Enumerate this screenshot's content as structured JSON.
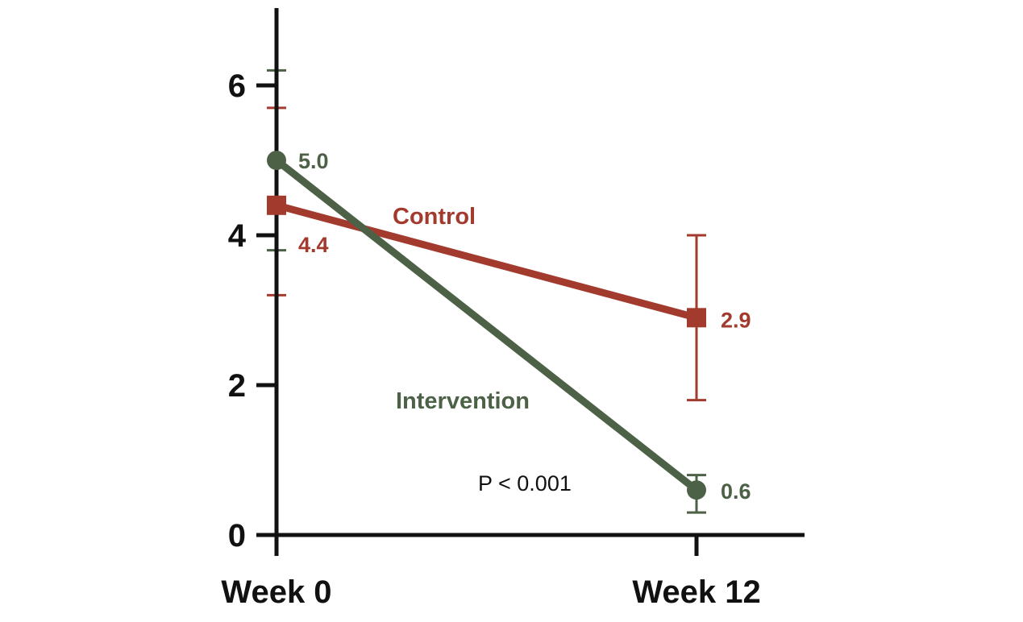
{
  "chart_data": {
    "type": "line",
    "categories": [
      "Week 0",
      "Week 12"
    ],
    "ylim": [
      0,
      7
    ],
    "y_ticks": [
      0,
      2,
      4,
      6
    ],
    "y_tick_labels": [
      "0",
      "2",
      "4",
      "6"
    ],
    "grid": false,
    "title": "",
    "xlabel": "",
    "ylabel": "",
    "series": [
      {
        "name": "Control",
        "color": "#a23b2e",
        "marker": "square",
        "values": [
          4.4,
          2.9
        ],
        "error_low": [
          3.2,
          1.8
        ],
        "error_high": [
          5.7,
          4.0
        ],
        "value_labels": [
          "4.4",
          "2.9"
        ]
      },
      {
        "name": "Intervention",
        "color": "#4d6147",
        "marker": "circle",
        "values": [
          5.0,
          0.6
        ],
        "error_low": [
          3.8,
          0.3
        ],
        "error_high": [
          6.2,
          0.8
        ],
        "value_labels": [
          "5.0",
          "0.6"
        ]
      }
    ],
    "annotations": [
      "P < 0.001"
    ]
  }
}
